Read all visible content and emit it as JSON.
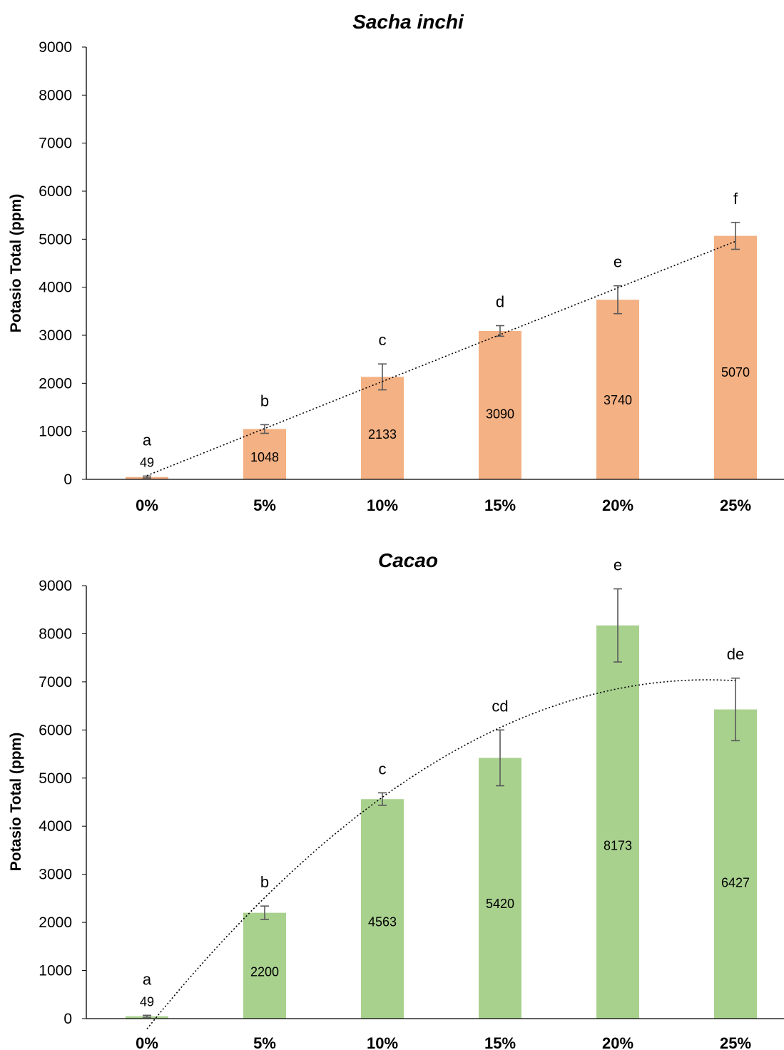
{
  "chart_data": [
    {
      "type": "bar",
      "title": "Sacha inchi",
      "ylabel": "Potasio Total (ppm)",
      "xlabel": "",
      "categories": [
        "0%",
        "5%",
        "10%",
        "15%",
        "20%",
        "25%"
      ],
      "values": [
        49,
        1048,
        2133,
        3090,
        3740,
        5070
      ],
      "value_labels": [
        "49",
        "1048",
        "2133",
        "3090",
        "3740",
        "5070"
      ],
      "error": [
        20,
        90,
        270,
        110,
        290,
        280
      ],
      "letters": [
        "a",
        "b",
        "c",
        "d",
        "e",
        "f"
      ],
      "ylim": [
        0,
        9000
      ],
      "yticks": [
        "0",
        "1000",
        "2000",
        "3000",
        "4000",
        "5000",
        "6000",
        "7000",
        "8000",
        "9000"
      ],
      "bar_color": "#F4B183",
      "error_color": "#595959",
      "trendline": "dotted polynomial",
      "trendline_color": "#000000",
      "grid": false,
      "legend": "none"
    },
    {
      "type": "bar",
      "title": "Cacao",
      "ylabel": "Potasio Total (ppm)",
      "xlabel": "",
      "categories": [
        "0%",
        "5%",
        "10%",
        "15%",
        "20%",
        "25%"
      ],
      "values": [
        49,
        2200,
        4563,
        5420,
        8173,
        6427
      ],
      "value_labels": [
        "49",
        "2200",
        "4563",
        "5420",
        "8173",
        "6427"
      ],
      "error": [
        20,
        140,
        130,
        580,
        760,
        650
      ],
      "letters": [
        "a",
        "b",
        "c",
        "cd",
        "e",
        "de"
      ],
      "ylim": [
        0,
        9000
      ],
      "yticks": [
        "0",
        "1000",
        "2000",
        "3000",
        "4000",
        "5000",
        "6000",
        "7000",
        "8000",
        "9000"
      ],
      "bar_color": "#A9D18E",
      "error_color": "#595959",
      "trendline": "dotted polynomial",
      "trendline_color": "#000000",
      "grid": false,
      "legend": "none"
    }
  ]
}
